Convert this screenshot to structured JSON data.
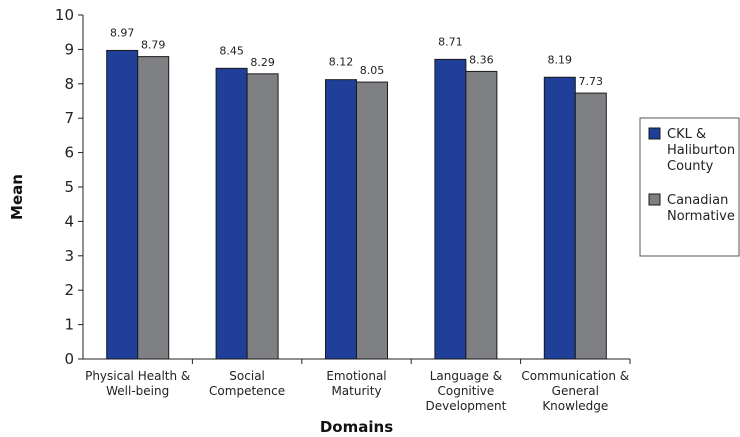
{
  "chart_data": {
    "type": "bar",
    "title": "",
    "xlabel": "Domains",
    "ylabel": "Mean",
    "ylim": [
      0,
      10
    ],
    "yticks": [
      0,
      1,
      2,
      3,
      4,
      5,
      6,
      7,
      8,
      9,
      10
    ],
    "grid": false,
    "legend_position": "right",
    "categories": [
      [
        "Physical Health &",
        "Well-being"
      ],
      [
        "Social",
        "Competence"
      ],
      [
        "Emotional",
        "Maturity"
      ],
      [
        "Language &",
        "Cognitive",
        "Development"
      ],
      [
        "Communication &",
        "General",
        "Knowledge"
      ]
    ],
    "series": [
      {
        "name": [
          "CKL &",
          "Haliburton",
          "County"
        ],
        "color": "#1f3f99",
        "values": [
          8.97,
          8.45,
          8.12,
          8.71,
          8.19
        ],
        "labels": [
          "8.97",
          "8.45",
          "8.12",
          "8.71",
          "8.19"
        ]
      },
      {
        "name": [
          "Canadian",
          "Normative"
        ],
        "color": "#7f8083",
        "values": [
          8.79,
          8.29,
          8.05,
          8.36,
          7.73
        ],
        "labels": [
          "8.79",
          "8.29",
          "8.05",
          "8.36",
          "7.73"
        ]
      }
    ]
  }
}
